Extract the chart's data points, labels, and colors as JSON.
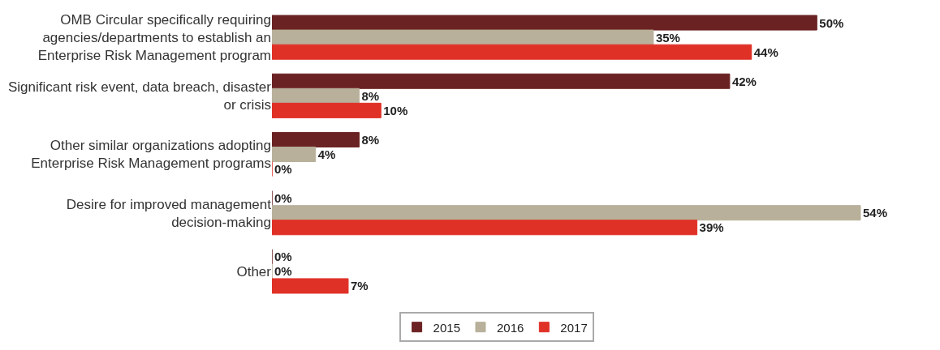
{
  "chart_data": {
    "type": "bar",
    "orientation": "horizontal",
    "categories": [
      "OMB Circular specifically requiring\nagencies/departments to establish an\nEnterprise Risk Management program",
      "Significant risk event, data breach, disaster\nor crisis",
      "Other similar organizations adopting\nEnterprise Risk Management programs",
      "Desire for improved management\ndecision-making",
      "Other"
    ],
    "series": [
      {
        "name": "2015",
        "color": "#6b2222",
        "values": [
          50,
          42,
          8,
          0,
          0
        ],
        "value_labels": [
          "50%",
          "42%",
          "8%",
          "0%",
          "0%"
        ]
      },
      {
        "name": "2016",
        "color": "#b8b09a",
        "values": [
          35,
          8,
          4,
          54,
          0
        ],
        "value_labels": [
          "35%",
          "8%",
          "4%",
          "54%",
          "0%"
        ]
      },
      {
        "name": "2017",
        "color": "#e03127",
        "values": [
          44,
          10,
          0,
          39,
          7
        ],
        "value_labels": [
          "44%",
          "10%",
          "0%",
          "39%",
          "7%"
        ]
      }
    ],
    "legend": "bottom"
  }
}
